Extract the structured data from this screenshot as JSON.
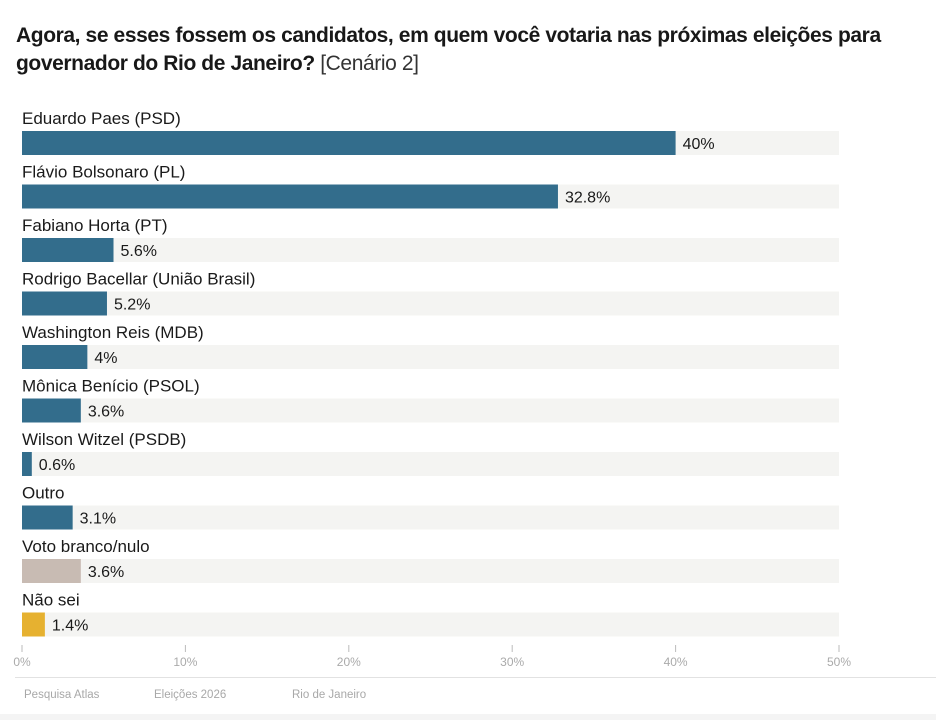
{
  "title": "Agora, se esses fossem os candidatos, em quem você votaria nas próximas eleições para governador do Rio de Janeiro?",
  "subtitle": "[Cenário 2]",
  "footer": [
    "Pesquisa Atlas",
    "Eleições 2026",
    "Rio de Janeiro"
  ],
  "colors": {
    "candidate": "#336d8c",
    "blank_null": "#c8bbb3",
    "dont_know": "#e6b130",
    "track": "#f4f4f2",
    "label": "#1a1a1a",
    "tick": "#bbbbbb"
  },
  "chart_data": {
    "type": "bar",
    "orientation": "horizontal",
    "title": "Agora, se esses fossem os candidatos, em quem você votaria nas próximas eleições para governador do Rio de Janeiro? [Cenário 2]",
    "xlabel": "",
    "ylabel": "",
    "xlim": [
      0,
      50
    ],
    "xticks": [
      0,
      10,
      20,
      30,
      40,
      50
    ],
    "xtick_labels": [
      "0%",
      "10%",
      "20%",
      "30%",
      "40%",
      "50%"
    ],
    "grid": false,
    "categories": [
      "Eduardo Paes (PSD)",
      "Flávio Bolsonaro (PL)",
      "Fabiano Horta (PT)",
      "Rodrigo Bacellar (União Brasil)",
      "Washington Reis (MDB)",
      "Mônica Benício (PSOL)",
      "Wilson Witzel (PSDB)",
      "Outro",
      "Voto branco/nulo",
      "Não sei"
    ],
    "values": [
      40,
      32.8,
      5.6,
      5.2,
      4,
      3.6,
      0.6,
      3.1,
      3.6,
      1.4
    ],
    "value_labels": [
      "40%",
      "32.8%",
      "5.6%",
      "5.2%",
      "4%",
      "3.6%",
      "0.6%",
      "3.1%",
      "3.6%",
      "1.4%"
    ],
    "bar_color_keys": [
      "candidate",
      "candidate",
      "candidate",
      "candidate",
      "candidate",
      "candidate",
      "candidate",
      "candidate",
      "blank_null",
      "dont_know"
    ]
  }
}
